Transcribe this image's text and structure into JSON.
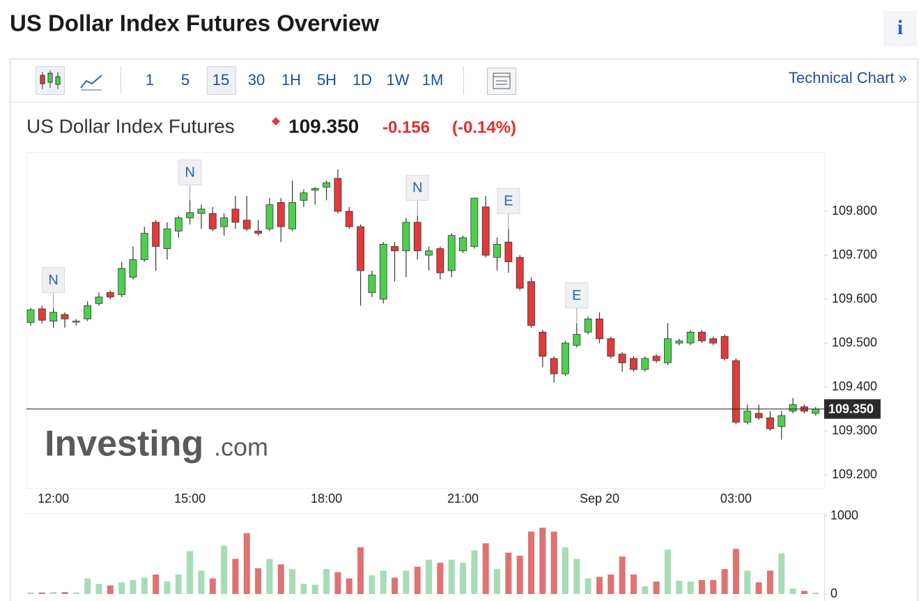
{
  "header": {
    "title": "US Dollar Index Futures Overview",
    "info": "i"
  },
  "toolbar": {
    "intervals": [
      "1",
      "5",
      "15",
      "30",
      "1H",
      "5H",
      "1D",
      "1W",
      "1M"
    ],
    "link": "Technical Chart »"
  },
  "quote": {
    "name": "US Dollar Index Futures",
    "last": "109.350",
    "change": "-0.156",
    "change_pct": "(-0.14%)"
  },
  "logo": {
    "main": "Investing",
    "suffix": ".com"
  },
  "chart_data": {
    "type": "candlestick",
    "categories": [
      null,
      null,
      "12:00",
      null,
      null,
      null,
      null,
      null,
      null,
      null,
      null,
      null,
      null,
      null,
      "15:00",
      null,
      null,
      null,
      null,
      null,
      null,
      null,
      null,
      null,
      null,
      null,
      "18:00",
      null,
      null,
      null,
      null,
      null,
      null,
      null,
      null,
      null,
      null,
      null,
      "21:00",
      null,
      null,
      null,
      null,
      null,
      null,
      null,
      null,
      null,
      null,
      null,
      "Sep 20",
      null,
      null,
      null,
      null,
      null,
      null,
      null,
      null,
      null,
      null,
      null,
      "03:00",
      null,
      null,
      null,
      null,
      null,
      null,
      null
    ],
    "open": [
      109.547,
      109.578,
      109.55,
      109.565,
      109.548,
      109.555,
      109.59,
      109.615,
      109.61,
      109.65,
      109.69,
      109.775,
      109.715,
      109.755,
      109.785,
      109.795,
      109.795,
      109.765,
      109.805,
      109.78,
      109.755,
      109.76,
      109.82,
      109.76,
      109.825,
      109.848,
      109.855,
      109.875,
      109.8,
      109.765,
      109.615,
      109.6,
      109.72,
      109.71,
      109.775,
      109.7,
      109.715,
      109.665,
      109.71,
      109.72,
      109.81,
      109.695,
      109.73,
      109.695,
      109.64,
      109.525,
      109.465,
      109.43,
      109.495,
      109.525,
      109.555,
      109.51,
      109.475,
      109.465,
      109.44,
      109.47,
      109.455,
      109.5,
      109.5,
      109.525,
      109.51,
      109.515,
      109.46,
      109.32,
      109.34,
      109.33,
      109.31,
      109.345,
      109.355,
      109.34
    ],
    "high": [
      109.58,
      109.585,
      109.58,
      109.57,
      109.555,
      109.595,
      109.615,
      109.62,
      109.685,
      109.72,
      109.765,
      109.78,
      109.775,
      109.79,
      109.825,
      109.815,
      109.81,
      109.795,
      109.835,
      109.835,
      109.78,
      109.83,
      109.83,
      109.87,
      109.85,
      109.855,
      109.87,
      109.895,
      109.81,
      109.77,
      109.665,
      109.73,
      109.73,
      109.785,
      109.79,
      109.72,
      109.72,
      109.75,
      109.745,
      109.83,
      109.835,
      109.74,
      109.76,
      109.7,
      109.65,
      109.53,
      109.47,
      109.505,
      109.545,
      109.56,
      109.57,
      109.515,
      109.48,
      109.47,
      109.47,
      109.475,
      109.545,
      109.51,
      109.53,
      109.53,
      109.515,
      109.52,
      109.465,
      109.36,
      109.36,
      109.345,
      109.345,
      109.375,
      109.36,
      109.355
    ],
    "low": [
      109.54,
      109.545,
      109.535,
      109.535,
      109.54,
      109.55,
      109.585,
      109.6,
      109.605,
      109.645,
      109.685,
      109.665,
      109.69,
      109.74,
      109.77,
      109.76,
      109.755,
      109.745,
      109.76,
      109.755,
      109.745,
      109.755,
      109.73,
      109.755,
      109.81,
      109.815,
      109.825,
      109.795,
      109.76,
      109.585,
      109.605,
      109.59,
      109.64,
      109.65,
      109.69,
      109.665,
      109.645,
      109.65,
      109.705,
      109.715,
      109.695,
      109.665,
      109.66,
      109.62,
      109.535,
      109.445,
      109.41,
      109.425,
      109.49,
      109.52,
      109.5,
      109.465,
      109.435,
      109.435,
      109.435,
      109.455,
      109.45,
      109.495,
      109.495,
      109.5,
      109.495,
      109.46,
      109.315,
      109.315,
      109.325,
      109.3,
      109.28,
      109.34,
      109.34,
      109.335
    ],
    "close": [
      109.576,
      109.552,
      109.57,
      109.555,
      109.55,
      109.585,
      109.605,
      109.605,
      109.67,
      109.69,
      109.75,
      109.72,
      109.76,
      109.785,
      109.797,
      109.805,
      109.76,
      109.785,
      109.775,
      109.76,
      109.75,
      109.815,
      109.765,
      109.82,
      109.842,
      109.852,
      109.865,
      109.8,
      109.765,
      109.665,
      109.655,
      109.725,
      109.71,
      109.775,
      109.71,
      109.71,
      109.66,
      109.745,
      109.74,
      109.83,
      109.7,
      109.725,
      109.685,
      109.625,
      109.54,
      109.47,
      109.43,
      109.5,
      109.52,
      109.555,
      109.51,
      109.47,
      109.455,
      109.44,
      109.465,
      109.46,
      109.51,
      109.505,
      109.525,
      109.505,
      109.5,
      109.465,
      109.32,
      109.345,
      109.33,
      109.305,
      109.335,
      109.36,
      109.345,
      109.35
    ],
    "ylim": [
      109.17,
      109.935
    ],
    "yticks": [
      {
        "value": 109.2,
        "label": "109.200"
      },
      {
        "value": 109.3,
        "label": "109.300"
      },
      {
        "value": 109.4,
        "label": "109.400"
      },
      {
        "value": 109.5,
        "label": "109.500"
      },
      {
        "value": 109.6,
        "label": "109.600"
      },
      {
        "value": 109.7,
        "label": "109.700"
      },
      {
        "value": 109.8,
        "label": "109.800"
      }
    ],
    "last_price": {
      "value": 109.35,
      "label": "109.350"
    },
    "annotations": [
      "N",
      "N",
      "N",
      "E",
      "E"
    ],
    "up_color": "#4cd04c",
    "down_color": "#e03a3a",
    "volume": {
      "values": [
        20,
        20,
        25,
        25,
        20,
        200,
        130,
        110,
        150,
        180,
        210,
        250,
        160,
        250,
        550,
        300,
        200,
        620,
        450,
        780,
        330,
        450,
        380,
        320,
        130,
        120,
        320,
        280,
        200,
        600,
        240,
        300,
        210,
        300,
        350,
        440,
        400,
        440,
        400,
        560,
        650,
        320,
        530,
        490,
        800,
        850,
        800,
        600,
        450,
        200,
        220,
        250,
        480,
        250,
        100,
        160,
        570,
        170,
        160,
        180,
        180,
        320,
        580,
        300,
        150,
        300,
        520,
        70,
        40,
        20
      ],
      "ylim": [
        0,
        1000
      ],
      "yticks": [
        0,
        1000
      ],
      "up_color": "#a6dcb6",
      "down_color": "#e07272"
    }
  }
}
